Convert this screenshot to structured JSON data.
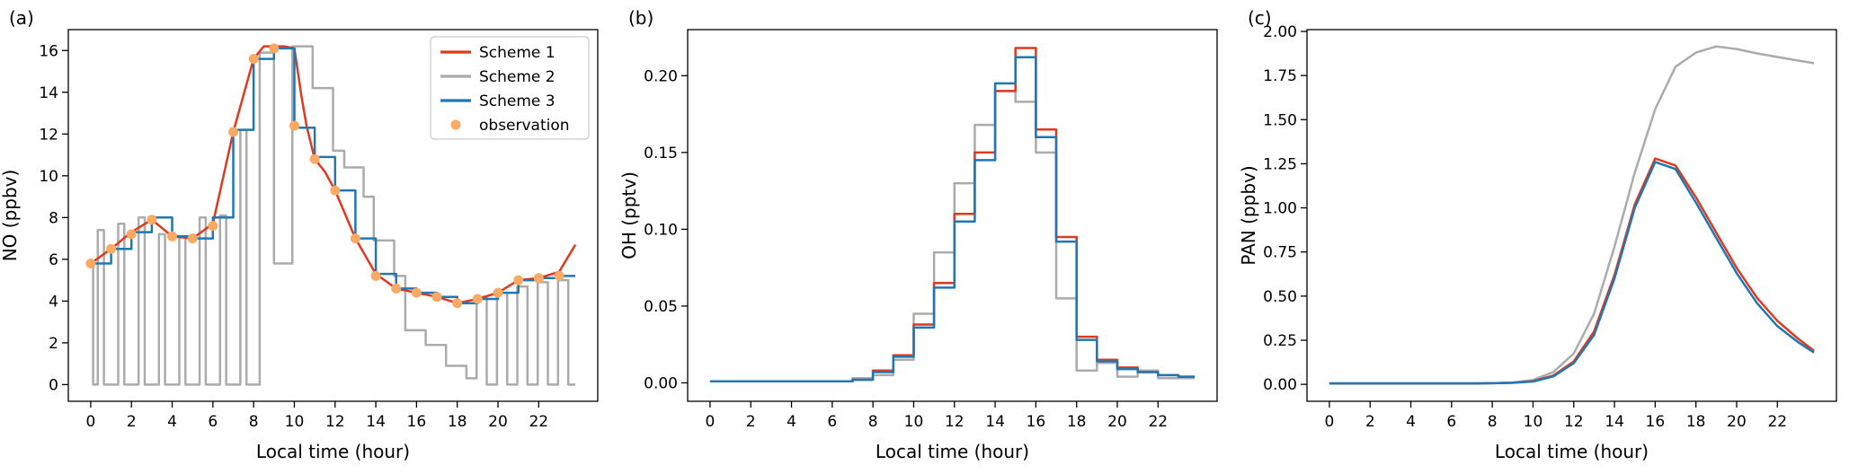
{
  "figure": {
    "xlabel": "Local time (hour)",
    "panel_labels": [
      "(a)",
      "(b)",
      "(c)"
    ]
  },
  "chart_data": [
    {
      "type": "line",
      "panel": "a",
      "panel_label": "(a)",
      "xlabel": "Local time (hour)",
      "ylabel": "NO (ppbv)",
      "xlim": [
        -1.1,
        24.9
      ],
      "ylim": [
        -0.8,
        17.0
      ],
      "xticks": [
        0,
        2,
        4,
        6,
        8,
        10,
        12,
        14,
        16,
        18,
        20,
        22
      ],
      "yticks": [
        0,
        2,
        4,
        6,
        8,
        10,
        12,
        14,
        16
      ],
      "ydecimals": 0,
      "grid": false,
      "legend": {
        "position": "upper-right",
        "entries": [
          {
            "label": "Scheme 1",
            "color": "#e0391e",
            "kind": "line"
          },
          {
            "label": "Scheme 2",
            "color": "#ababab",
            "kind": "line"
          },
          {
            "label": "Scheme 3",
            "color": "#1f77b4",
            "kind": "line"
          },
          {
            "label": "observation",
            "color": "#fbaa63",
            "kind": "dot"
          }
        ]
      },
      "series": [
        {
          "name": "Scheme 2",
          "type": "poly",
          "color": "#ababab",
          "points": [
            [
              0,
              5.8
            ],
            [
              0.12,
              5.8
            ],
            [
              0.12,
              0
            ],
            [
              0.35,
              0
            ],
            [
              0.35,
              7.4
            ],
            [
              0.65,
              7.4
            ],
            [
              0.65,
              0
            ],
            [
              1.35,
              0
            ],
            [
              1.35,
              7.7
            ],
            [
              1.65,
              7.7
            ],
            [
              1.65,
              0
            ],
            [
              2.35,
              0
            ],
            [
              2.35,
              8.0
            ],
            [
              2.65,
              8.0
            ],
            [
              2.65,
              0
            ],
            [
              3.35,
              0
            ],
            [
              3.35,
              7.2
            ],
            [
              3.65,
              7.2
            ],
            [
              3.65,
              0
            ],
            [
              4.35,
              0
            ],
            [
              4.35,
              7.1
            ],
            [
              4.65,
              7.1
            ],
            [
              4.65,
              0
            ],
            [
              5.35,
              0
            ],
            [
              5.35,
              8.0
            ],
            [
              5.65,
              8.0
            ],
            [
              5.65,
              0
            ],
            [
              6.35,
              0
            ],
            [
              6.35,
              8.1
            ],
            [
              6.65,
              8.1
            ],
            [
              6.65,
              0
            ],
            [
              7.35,
              0
            ],
            [
              7.35,
              12.2
            ],
            [
              7.65,
              12.2
            ],
            [
              7.65,
              0
            ],
            [
              8.3,
              0
            ],
            [
              8.3,
              15.9
            ],
            [
              9.0,
              15.9
            ],
            [
              9.0,
              5.8
            ],
            [
              9.9,
              5.8
            ],
            [
              9.9,
              16.2
            ],
            [
              10.9,
              16.2
            ],
            [
              10.9,
              14.2
            ],
            [
              11.9,
              14.2
            ],
            [
              11.9,
              11.2
            ],
            [
              12.45,
              11.2
            ],
            [
              12.45,
              10.4
            ],
            [
              13.4,
              10.4
            ],
            [
              13.4,
              9.0
            ],
            [
              13.9,
              9.0
            ],
            [
              13.9,
              6.9
            ],
            [
              14.9,
              6.9
            ],
            [
              14.9,
              5.2
            ],
            [
              15.45,
              5.2
            ],
            [
              15.45,
              2.6
            ],
            [
              16.45,
              2.6
            ],
            [
              16.45,
              1.9
            ],
            [
              17.45,
              1.9
            ],
            [
              17.45,
              0.9
            ],
            [
              18.45,
              0.9
            ],
            [
              18.45,
              0.3
            ],
            [
              18.95,
              0.3
            ],
            [
              18.95,
              4.2
            ],
            [
              19.45,
              4.2
            ],
            [
              19.45,
              0
            ],
            [
              19.95,
              0
            ],
            [
              19.95,
              4.4
            ],
            [
              20.45,
              4.4
            ],
            [
              20.45,
              0
            ],
            [
              20.95,
              0
            ],
            [
              20.95,
              4.7
            ],
            [
              21.45,
              4.7
            ],
            [
              21.45,
              0
            ],
            [
              21.95,
              0
            ],
            [
              21.95,
              4.9
            ],
            [
              22.45,
              4.9
            ],
            [
              22.45,
              0
            ],
            [
              22.95,
              0
            ],
            [
              22.95,
              5.0
            ],
            [
              23.45,
              5.0
            ],
            [
              23.45,
              0
            ],
            [
              23.8,
              0
            ]
          ]
        },
        {
          "name": "Scheme 1",
          "type": "line",
          "color": "#e0391e",
          "x": [
            0,
            1,
            2,
            3,
            4,
            5,
            6,
            7,
            8,
            8.5,
            9.5,
            10,
            10.35,
            10.6,
            11,
            11.5,
            12,
            13,
            14,
            15,
            16,
            17,
            18,
            19,
            20,
            21,
            22,
            23,
            23.8
          ],
          "y": [
            5.8,
            6.5,
            7.3,
            7.9,
            7.1,
            7.0,
            7.7,
            12.1,
            15.6,
            16.2,
            16.2,
            16.1,
            13.8,
            12.4,
            10.8,
            10.2,
            9.3,
            7.0,
            5.3,
            4.6,
            4.4,
            4.2,
            3.9,
            4.1,
            4.4,
            5.0,
            5.1,
            5.4,
            6.7
          ]
        },
        {
          "name": "Scheme 3",
          "type": "step",
          "color": "#1f77b4",
          "xend": 23.8,
          "x": [
            0,
            1,
            2,
            3,
            4,
            5,
            6,
            7,
            8,
            9,
            10,
            11,
            12,
            13,
            14,
            15,
            16,
            17,
            18,
            19,
            20,
            21,
            22,
            23
          ],
          "y": [
            5.8,
            6.5,
            7.3,
            8.0,
            7.1,
            7.0,
            8.0,
            12.2,
            15.6,
            16.1,
            12.3,
            10.9,
            9.3,
            7.0,
            5.3,
            4.6,
            4.4,
            4.2,
            3.9,
            4.1,
            4.4,
            5.0,
            5.1,
            5.2
          ]
        },
        {
          "name": "observation",
          "type": "scatter",
          "color": "#fbaa63",
          "x": [
            0,
            1,
            2,
            3,
            4,
            5,
            6,
            7,
            8,
            9,
            10,
            11,
            12,
            13,
            14,
            15,
            16,
            17,
            18,
            19,
            20,
            21,
            22,
            23
          ],
          "y": [
            5.8,
            6.5,
            7.2,
            7.9,
            7.1,
            7.0,
            7.6,
            12.1,
            15.6,
            16.1,
            12.4,
            10.8,
            9.3,
            7.0,
            5.2,
            4.6,
            4.4,
            4.2,
            3.9,
            4.1,
            4.4,
            5.0,
            5.1,
            5.2
          ]
        }
      ]
    },
    {
      "type": "line",
      "panel": "b",
      "panel_label": "(b)",
      "xlabel": "Local time (hour)",
      "ylabel": "OH (pptv)",
      "xlim": [
        -1.1,
        24.9
      ],
      "ylim": [
        -0.012,
        0.23
      ],
      "xticks": [
        0,
        2,
        4,
        6,
        8,
        10,
        12,
        14,
        16,
        18,
        20,
        22
      ],
      "yticks": [
        0,
        0.05,
        0.1,
        0.15,
        0.2
      ],
      "ydecimals": 2,
      "grid": false,
      "series": [
        {
          "name": "Scheme 2",
          "type": "step",
          "color": "#ababab",
          "xend": 23.8,
          "x": [
            0,
            1,
            2,
            3,
            4,
            5,
            6,
            7,
            8,
            9,
            10,
            11,
            12,
            13,
            14,
            15,
            16,
            17,
            18,
            19,
            20,
            21,
            22,
            23
          ],
          "y": [
            0.001,
            0.001,
            0.001,
            0.001,
            0.001,
            0.001,
            0.001,
            0.003,
            0.005,
            0.015,
            0.045,
            0.085,
            0.13,
            0.168,
            0.19,
            0.183,
            0.15,
            0.055,
            0.008,
            0.013,
            0.004,
            0.008,
            0.003,
            0.003
          ]
        },
        {
          "name": "Scheme 1",
          "type": "step",
          "color": "#e0391e",
          "xend": 23.8,
          "x": [
            0,
            1,
            2,
            3,
            4,
            5,
            6,
            7,
            8,
            9,
            10,
            11,
            12,
            13,
            14,
            15,
            16,
            17,
            18,
            19,
            20,
            21,
            22,
            23
          ],
          "y": [
            0.001,
            0.001,
            0.001,
            0.001,
            0.001,
            0.001,
            0.001,
            0.002,
            0.008,
            0.018,
            0.038,
            0.065,
            0.11,
            0.15,
            0.19,
            0.218,
            0.165,
            0.095,
            0.03,
            0.015,
            0.01,
            0.007,
            0.005,
            0.004
          ]
        },
        {
          "name": "Scheme 3",
          "type": "step",
          "color": "#1f77b4",
          "xend": 23.8,
          "x": [
            0,
            1,
            2,
            3,
            4,
            5,
            6,
            7,
            8,
            9,
            10,
            11,
            12,
            13,
            14,
            15,
            16,
            17,
            18,
            19,
            20,
            21,
            22,
            23
          ],
          "y": [
            0.001,
            0.001,
            0.001,
            0.001,
            0.001,
            0.001,
            0.001,
            0.002,
            0.007,
            0.017,
            0.036,
            0.062,
            0.105,
            0.145,
            0.195,
            0.212,
            0.16,
            0.092,
            0.028,
            0.014,
            0.009,
            0.007,
            0.005,
            0.004
          ]
        }
      ]
    },
    {
      "type": "line",
      "panel": "c",
      "panel_label": "(c)",
      "xlabel": "Local time (hour)",
      "ylabel": "PAN (ppbv)",
      "xlim": [
        -1.1,
        24.9
      ],
      "ylim": [
        -0.096,
        2.01
      ],
      "xticks": [
        0,
        2,
        4,
        6,
        8,
        10,
        12,
        14,
        16,
        18,
        20,
        22
      ],
      "yticks": [
        0,
        0.25,
        0.5,
        0.75,
        1.0,
        1.25,
        1.5,
        1.75,
        2.0
      ],
      "ydecimals": 2,
      "grid": false,
      "series": [
        {
          "name": "Scheme 2",
          "type": "line",
          "color": "#ababab",
          "x": [
            0,
            1,
            2,
            3,
            4,
            5,
            6,
            7,
            8,
            9,
            10,
            11,
            12,
            13,
            14,
            15,
            16,
            17,
            18,
            19,
            20,
            21,
            22,
            23,
            23.8
          ],
          "y": [
            0.005,
            0.005,
            0.005,
            0.005,
            0.005,
            0.005,
            0.005,
            0.005,
            0.006,
            0.01,
            0.025,
            0.07,
            0.175,
            0.4,
            0.78,
            1.2,
            1.56,
            1.8,
            1.88,
            1.915,
            1.9,
            1.875,
            1.855,
            1.835,
            1.82
          ]
        },
        {
          "name": "Scheme 1",
          "type": "line",
          "color": "#e0391e",
          "x": [
            0,
            1,
            2,
            3,
            4,
            5,
            6,
            7,
            8,
            9,
            10,
            11,
            12,
            13,
            14,
            15,
            16,
            17,
            18,
            19,
            20,
            21,
            22,
            23,
            23.8
          ],
          "y": [
            0.005,
            0.005,
            0.005,
            0.005,
            0.005,
            0.005,
            0.005,
            0.005,
            0.006,
            0.009,
            0.018,
            0.05,
            0.13,
            0.3,
            0.62,
            1.02,
            1.28,
            1.24,
            1.06,
            0.86,
            0.66,
            0.49,
            0.36,
            0.26,
            0.19
          ]
        },
        {
          "name": "Scheme 3",
          "type": "line",
          "color": "#1f77b4",
          "x": [
            0,
            1,
            2,
            3,
            4,
            5,
            6,
            7,
            8,
            9,
            10,
            11,
            12,
            13,
            14,
            15,
            16,
            17,
            18,
            19,
            20,
            21,
            22,
            23,
            23.8
          ],
          "y": [
            0.005,
            0.005,
            0.005,
            0.005,
            0.005,
            0.005,
            0.005,
            0.005,
            0.006,
            0.009,
            0.016,
            0.045,
            0.12,
            0.28,
            0.6,
            1.0,
            1.26,
            1.22,
            1.03,
            0.83,
            0.63,
            0.46,
            0.33,
            0.24,
            0.18
          ]
        }
      ]
    }
  ]
}
